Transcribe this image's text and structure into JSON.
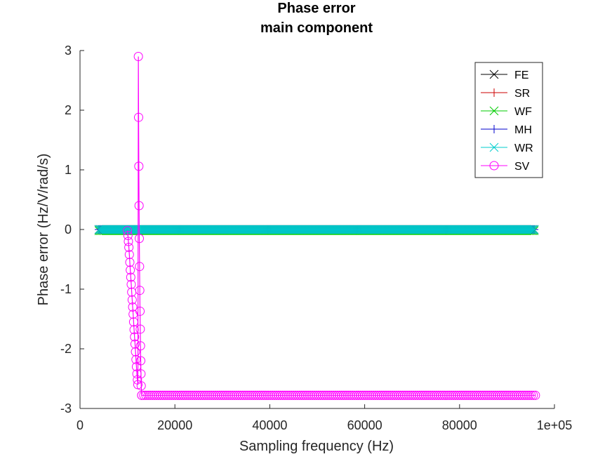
{
  "chart_data": {
    "type": "line",
    "title": "Phase error",
    "subtitle": "main component",
    "xlabel": "Sampling frequency (Hz)",
    "ylabel": "Phase error (Hz/V/rad/s)",
    "xlim": [
      0,
      100000
    ],
    "ylim": [
      -3,
      3
    ],
    "x_ticks": [
      0,
      20000,
      40000,
      60000,
      80000,
      100000
    ],
    "x_tick_labels": [
      "0",
      "20000",
      "40000",
      "60000",
      "80000",
      "1e+05"
    ],
    "y_ticks": [
      -3,
      -2,
      -1,
      0,
      1,
      2,
      3
    ],
    "y_tick_labels": [
      "-3",
      "-2",
      "-1",
      "0",
      "1",
      "2",
      "3"
    ],
    "grid": false,
    "legend_position": "top-right",
    "series": [
      {
        "name": "FE",
        "color": "#000000",
        "marker": "x",
        "x_range": [
          4000,
          96000
        ],
        "value": 0
      },
      {
        "name": "SR",
        "color": "#cc0000",
        "marker": "+",
        "x_range": [
          4000,
          96000
        ],
        "value": 0
      },
      {
        "name": "WF",
        "color": "#00cc00",
        "marker": "x",
        "x_range": [
          4000,
          96000
        ],
        "value": -0.02
      },
      {
        "name": "MH",
        "color": "#0000cc",
        "marker": "+",
        "x_range": [
          4000,
          96000
        ],
        "value": 0
      },
      {
        "name": "WR",
        "color": "#00cccc",
        "marker": "x",
        "x_range": [
          4000,
          96000
        ],
        "value": 0
      },
      {
        "name": "SV",
        "color": "#ff00ff",
        "marker": "o",
        "points": [
          [
            10000,
            -0.02
          ],
          [
            10100,
            -0.1
          ],
          [
            10200,
            -0.2
          ],
          [
            10300,
            -0.3
          ],
          [
            10400,
            -0.42
          ],
          [
            10500,
            -0.55
          ],
          [
            10600,
            -0.68
          ],
          [
            10700,
            -0.8
          ],
          [
            10800,
            -0.92
          ],
          [
            10900,
            -1.05
          ],
          [
            11000,
            -1.18
          ],
          [
            11100,
            -1.3
          ],
          [
            11200,
            -1.42
          ],
          [
            11300,
            -1.55
          ],
          [
            11400,
            -1.68
          ],
          [
            11500,
            -1.8
          ],
          [
            11600,
            -1.92
          ],
          [
            11700,
            -2.05
          ],
          [
            11800,
            -2.18
          ],
          [
            11900,
            -2.3
          ],
          [
            12000,
            -2.42
          ],
          [
            12100,
            -2.52
          ],
          [
            12200,
            -2.6
          ],
          [
            12300,
            2.9
          ],
          [
            12350,
            1.88
          ],
          [
            12400,
            1.06
          ],
          [
            12450,
            0.4
          ],
          [
            12500,
            -0.15
          ],
          [
            12550,
            -0.62
          ],
          [
            12600,
            -1.02
          ],
          [
            12650,
            -1.37
          ],
          [
            12700,
            -1.67
          ],
          [
            12750,
            -1.95
          ],
          [
            12800,
            -2.2
          ],
          [
            12850,
            -2.42
          ],
          [
            12900,
            -2.62
          ],
          [
            13000,
            -2.78
          ],
          [
            96000,
            -2.78
          ]
        ],
        "flat_segment": {
          "x_range": [
            13000,
            96000
          ],
          "value": -2.78
        }
      }
    ]
  }
}
